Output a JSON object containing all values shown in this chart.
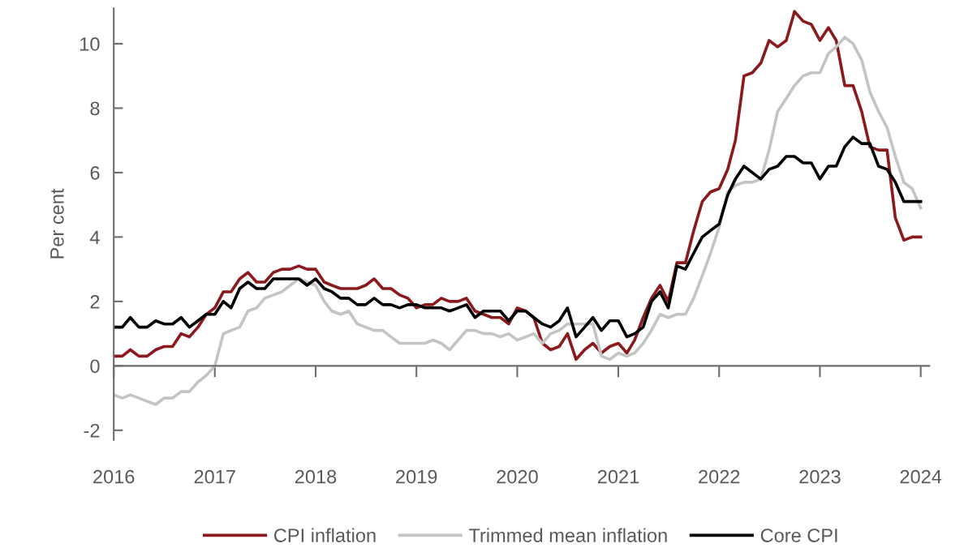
{
  "chart_data": {
    "type": "line",
    "ylabel": "Per cent",
    "x": [
      "2016-01",
      "2016-02",
      "2016-03",
      "2016-04",
      "2016-05",
      "2016-06",
      "2016-07",
      "2016-08",
      "2016-09",
      "2016-10",
      "2016-11",
      "2016-12",
      "2017-01",
      "2017-02",
      "2017-03",
      "2017-04",
      "2017-05",
      "2017-06",
      "2017-07",
      "2017-08",
      "2017-09",
      "2017-10",
      "2017-11",
      "2017-12",
      "2018-01",
      "2018-02",
      "2018-03",
      "2018-04",
      "2018-05",
      "2018-06",
      "2018-07",
      "2018-08",
      "2018-09",
      "2018-10",
      "2018-11",
      "2018-12",
      "2019-01",
      "2019-02",
      "2019-03",
      "2019-04",
      "2019-05",
      "2019-06",
      "2019-07",
      "2019-08",
      "2019-09",
      "2019-10",
      "2019-11",
      "2019-12",
      "2020-01",
      "2020-02",
      "2020-03",
      "2020-04",
      "2020-05",
      "2020-06",
      "2020-07",
      "2020-08",
      "2020-09",
      "2020-10",
      "2020-11",
      "2020-12",
      "2021-01",
      "2021-02",
      "2021-03",
      "2021-04",
      "2021-05",
      "2021-06",
      "2021-07",
      "2021-08",
      "2021-09",
      "2021-10",
      "2021-11",
      "2021-12",
      "2022-01",
      "2022-02",
      "2022-03",
      "2022-04",
      "2022-05",
      "2022-06",
      "2022-07",
      "2022-08",
      "2022-09",
      "2022-10",
      "2022-11",
      "2022-12",
      "2023-01",
      "2023-02",
      "2023-03",
      "2023-04",
      "2023-05",
      "2023-06",
      "2023-07",
      "2023-08",
      "2023-09",
      "2023-10",
      "2023-11",
      "2023-12",
      "2024-01"
    ],
    "series": [
      {
        "name": "CPI inflation",
        "color": "#8b1a1e",
        "values": [
          0.3,
          0.3,
          0.5,
          0.3,
          0.3,
          0.5,
          0.6,
          0.6,
          1.0,
          0.9,
          1.2,
          1.6,
          1.8,
          2.3,
          2.3,
          2.7,
          2.9,
          2.6,
          2.6,
          2.9,
          3.0,
          3.0,
          3.1,
          3.0,
          3.0,
          2.6,
          2.5,
          2.4,
          2.4,
          2.4,
          2.5,
          2.7,
          2.4,
          2.4,
          2.2,
          2.1,
          1.8,
          1.9,
          1.9,
          2.1,
          2.0,
          2.0,
          2.1,
          1.7,
          1.6,
          1.5,
          1.5,
          1.3,
          1.8,
          1.7,
          1.5,
          0.7,
          0.5,
          0.6,
          1.0,
          0.2,
          0.5,
          0.7,
          0.4,
          0.6,
          0.7,
          0.4,
          0.8,
          1.5,
          2.1,
          2.5,
          2.0,
          3.2,
          3.2,
          4.2,
          5.1,
          5.4,
          5.5,
          6.1,
          7.0,
          9.0,
          9.1,
          9.4,
          10.1,
          9.9,
          10.1,
          11.0,
          10.7,
          10.6,
          10.1,
          10.5,
          10.1,
          8.7,
          8.7,
          7.9,
          6.8,
          6.7,
          6.7,
          4.6,
          3.9,
          4.0,
          4.0
        ]
      },
      {
        "name": "Trimmed mean inflation",
        "color": "#c4c4c4",
        "values": [
          -0.9,
          -1.0,
          -0.9,
          -1.0,
          -1.1,
          -1.2,
          -1.0,
          -1.0,
          -0.8,
          -0.8,
          -0.5,
          -0.3,
          0.0,
          1.0,
          1.1,
          1.2,
          1.7,
          1.8,
          2.1,
          2.2,
          2.3,
          2.5,
          2.7,
          2.6,
          2.5,
          2.0,
          1.7,
          1.6,
          1.7,
          1.3,
          1.2,
          1.1,
          1.1,
          0.9,
          0.7,
          0.7,
          0.7,
          0.7,
          0.8,
          0.7,
          0.5,
          0.8,
          1.1,
          1.1,
          1.0,
          1.0,
          0.9,
          1.0,
          0.8,
          0.9,
          1.0,
          0.7,
          1.0,
          1.1,
          1.3,
          1.3,
          1.3,
          1.3,
          0.3,
          0.2,
          0.4,
          0.3,
          0.4,
          0.7,
          1.1,
          1.6,
          1.5,
          1.6,
          1.6,
          2.1,
          2.8,
          3.5,
          4.3,
          5.4,
          5.6,
          5.7,
          5.7,
          5.8,
          6.7,
          7.9,
          8.3,
          8.7,
          9.0,
          9.1,
          9.1,
          9.7,
          9.9,
          10.2,
          10.0,
          9.5,
          8.5,
          7.9,
          7.4,
          6.5,
          5.7,
          5.5,
          4.9
        ]
      },
      {
        "name": "Core CPI",
        "color": "#000000",
        "values": [
          1.2,
          1.2,
          1.5,
          1.2,
          1.2,
          1.4,
          1.3,
          1.3,
          1.5,
          1.2,
          1.4,
          1.6,
          1.6,
          2.0,
          1.8,
          2.4,
          2.6,
          2.4,
          2.4,
          2.7,
          2.7,
          2.7,
          2.7,
          2.5,
          2.7,
          2.4,
          2.3,
          2.1,
          2.1,
          1.9,
          1.9,
          2.1,
          1.9,
          1.9,
          1.8,
          1.9,
          1.9,
          1.8,
          1.8,
          1.8,
          1.7,
          1.8,
          1.9,
          1.5,
          1.7,
          1.7,
          1.7,
          1.4,
          1.7,
          1.7,
          1.5,
          1.3,
          1.2,
          1.4,
          1.8,
          0.9,
          1.2,
          1.5,
          1.1,
          1.4,
          1.4,
          0.9,
          1.0,
          1.2,
          2.0,
          2.3,
          1.8,
          3.1,
          3.0,
          3.5,
          4.0,
          4.2,
          4.4,
          5.3,
          5.8,
          6.2,
          6.0,
          5.8,
          6.1,
          6.2,
          6.5,
          6.5,
          6.3,
          6.3,
          5.8,
          6.2,
          6.2,
          6.8,
          7.1,
          6.9,
          6.9,
          6.2,
          6.1,
          5.7,
          5.1,
          5.1,
          5.1
        ]
      }
    ],
    "xlim": [
      "2016-01",
      "2024-02"
    ],
    "xticks": [
      "2016",
      "2017",
      "2018",
      "2019",
      "2020",
      "2021",
      "2022",
      "2023",
      "2024"
    ],
    "ylim": [
      -2.3,
      11.1
    ],
    "yticks": [
      {
        "value": -2,
        "label": "-2"
      },
      0,
      2,
      4,
      6,
      8,
      10
    ],
    "legend": "bottom",
    "marker": "none",
    "line_style": "solid"
  }
}
